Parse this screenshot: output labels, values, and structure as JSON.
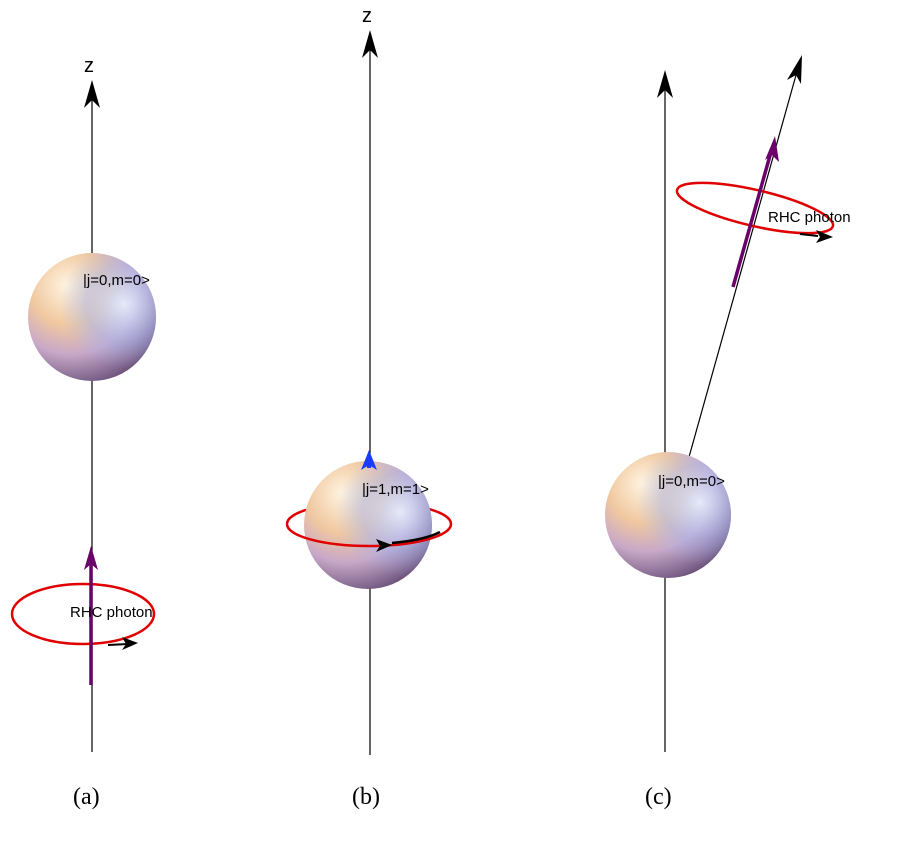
{
  "panels": [
    {
      "caption": "(a)",
      "axis_label": "z",
      "state_label": "|j=0,m=0>",
      "photon_label": "RHC photon"
    },
    {
      "caption": "(b)",
      "axis_label": "z",
      "state_label": "|j=1,m=1>"
    },
    {
      "caption": "(c)",
      "state_label": "|j=0,m=0>",
      "photon_label": "RHC photon"
    }
  ],
  "colors": {
    "axis": "#000000",
    "photon_loop": "#e00000",
    "photon_arrow": "#6a006a",
    "spin_arrow": "#1a3cff",
    "sphere_light": "#fff0d8",
    "sphere_warm": "#e8a878",
    "sphere_cool": "#a8b8f0",
    "sphere_dark": "#5a3a5a"
  }
}
